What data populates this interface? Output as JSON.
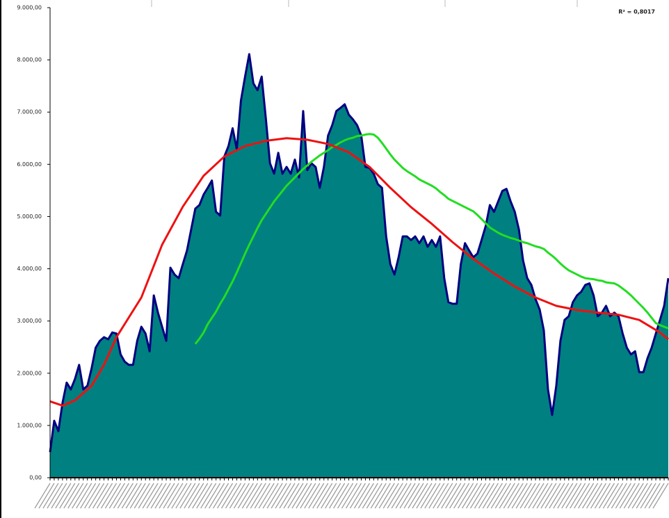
{
  "chart_data": {
    "type": "area",
    "annotation": "R² = 0,8017",
    "ylim": [
      0,
      9000
    ],
    "yticks": [
      {
        "value": 0,
        "label": "0,00"
      },
      {
        "value": 1000,
        "label": "1.000,00"
      },
      {
        "value": 2000,
        "label": "2.000,00"
      },
      {
        "value": 3000,
        "label": "3.000,00"
      },
      {
        "value": 4000,
        "label": "4.000,00"
      },
      {
        "value": 5000,
        "label": "5.000,00"
      },
      {
        "value": 6000,
        "label": "6.000,00"
      },
      {
        "value": 7000,
        "label": "7.000,00"
      },
      {
        "value": 8000,
        "label": "8.000,00"
      },
      {
        "value": 9000,
        "label": "9.000,00"
      }
    ],
    "series": [
      {
        "kind": "area",
        "color": "#008080",
        "edge": "#000080",
        "values": [
          490,
          1090,
          890,
          1430,
          1820,
          1690,
          1890,
          2160,
          1690,
          1760,
          2090,
          2490,
          2620,
          2690,
          2650,
          2780,
          2760,
          2360,
          2220,
          2160,
          2160,
          2620,
          2890,
          2760,
          2420,
          3490,
          3160,
          2890,
          2620,
          4020,
          3890,
          3820,
          4090,
          4350,
          4750,
          5150,
          5220,
          5420,
          5550,
          5690,
          5090,
          5020,
          6150,
          6350,
          6690,
          6290,
          7220,
          7680,
          8110,
          7550,
          7420,
          7680,
          6880,
          6020,
          5820,
          6220,
          5820,
          5950,
          5820,
          6090,
          5750,
          7020,
          5890,
          6020,
          5950,
          5550,
          5950,
          6550,
          6750,
          7020,
          7080,
          7150,
          6950,
          6860,
          6750,
          6550,
          5950,
          5930,
          5820,
          5620,
          5550,
          4620,
          4090,
          3890,
          4220,
          4620,
          4620,
          4550,
          4620,
          4490,
          4620,
          4420,
          4550,
          4420,
          4620,
          3820,
          3360,
          3330,
          3330,
          4090,
          4490,
          4350,
          4220,
          4290,
          4550,
          4820,
          5220,
          5090,
          5290,
          5490,
          5530,
          5290,
          5090,
          4750,
          4160,
          3820,
          3690,
          3420,
          3220,
          2820,
          1690,
          1200,
          1760,
          2620,
          3020,
          3090,
          3360,
          3490,
          3560,
          3690,
          3720,
          3490,
          3090,
          3160,
          3290,
          3090,
          3160,
          3090,
          2760,
          2490,
          2360,
          2420,
          2020,
          2020,
          2290,
          2490,
          2760,
          3020,
          3290,
          3820
        ]
      },
      {
        "kind": "line",
        "color": "#22dd22",
        "values": [
          null,
          null,
          null,
          null,
          null,
          null,
          null,
          null,
          null,
          null,
          null,
          null,
          null,
          null,
          null,
          null,
          null,
          null,
          null,
          null,
          null,
          null,
          null,
          null,
          null,
          null,
          null,
          null,
          null,
          null,
          null,
          null,
          null,
          null,
          null,
          2560,
          2660,
          2780,
          2940,
          3060,
          3180,
          3330,
          3460,
          3610,
          3760,
          3930,
          4110,
          4290,
          4460,
          4620,
          4780,
          4930,
          5050,
          5170,
          5290,
          5390,
          5490,
          5590,
          5670,
          5750,
          5830,
          5910,
          5980,
          6050,
          6110,
          6170,
          6220,
          6270,
          6330,
          6370,
          6420,
          6460,
          6490,
          6510,
          6540,
          6550,
          6570,
          6580,
          6570,
          6510,
          6410,
          6300,
          6190,
          6090,
          6010,
          5930,
          5870,
          5820,
          5770,
          5710,
          5670,
          5630,
          5590,
          5540,
          5470,
          5410,
          5340,
          5300,
          5260,
          5220,
          5180,
          5140,
          5100,
          5030,
          4950,
          4870,
          4790,
          4740,
          4690,
          4650,
          4620,
          4590,
          4570,
          4540,
          4510,
          4490,
          4460,
          4430,
          4410,
          4380,
          4310,
          4250,
          4180,
          4100,
          4030,
          3970,
          3930,
          3890,
          3850,
          3820,
          3810,
          3800,
          3780,
          3770,
          3740,
          3730,
          3720,
          3680,
          3620,
          3560,
          3490,
          3410,
          3330,
          3250,
          3160,
          3060,
          2960,
          2920,
          2890,
          2860
        ]
      },
      {
        "kind": "line",
        "color": "#ee1111",
        "x": [
          0,
          3,
          6,
          10,
          13,
          16,
          22,
          27,
          32,
          37,
          42,
          47,
          52,
          57,
          62,
          67,
          72,
          77,
          82,
          87,
          92,
          97,
          102,
          107,
          112,
          117,
          122,
          127,
          132,
          137,
          142,
          147,
          149
        ],
        "values": [
          1460,
          1380,
          1480,
          1760,
          2160,
          2690,
          3450,
          4460,
          5190,
          5780,
          6150,
          6350,
          6450,
          6500,
          6470,
          6390,
          6230,
          5950,
          5550,
          5180,
          4860,
          4510,
          4190,
          3910,
          3660,
          3450,
          3290,
          3210,
          3160,
          3120,
          3020,
          2780,
          2650
        ]
      }
    ]
  }
}
